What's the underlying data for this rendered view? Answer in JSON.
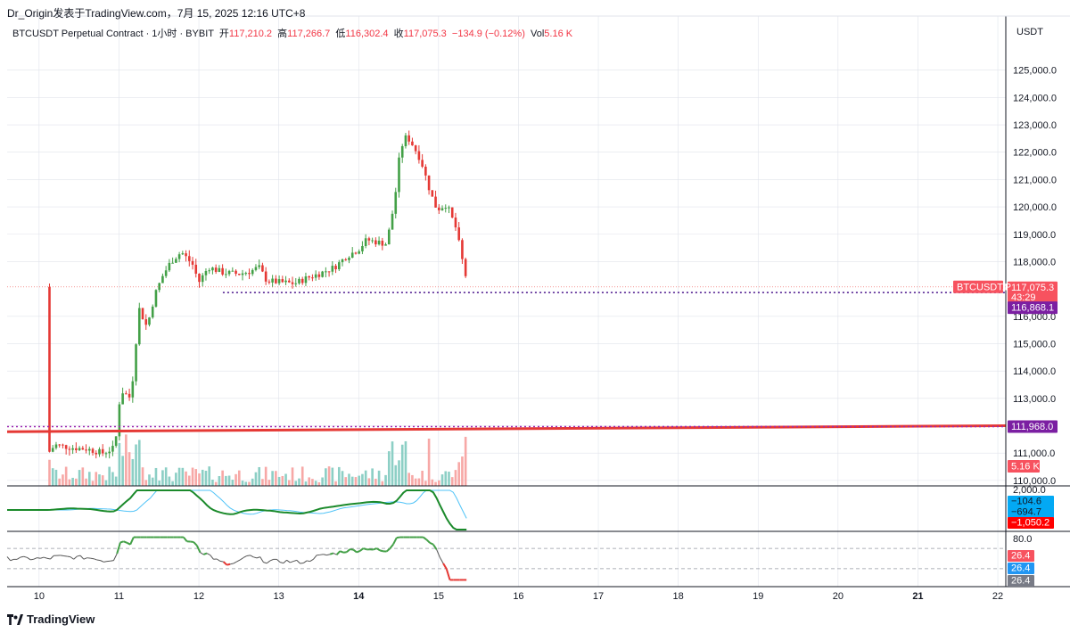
{
  "header": {
    "attribution": "Dr_Origin发表于TradingView.com，7月 15, 2025 12:16 UTC+8"
  },
  "legend": {
    "symbol": "BTCUSDT Perpetual Contract · 1小时 · BYBIT",
    "open_label": "开",
    "open": "117,210.2",
    "high_label": "高",
    "high": "117,266.7",
    "low_label": "低",
    "low": "116,302.4",
    "close_label": "收",
    "close": "117,075.3",
    "change": "−134.9 (−0.12%)",
    "vol_label": "Vol",
    "vol": "5.16 K"
  },
  "footer": {
    "brand": "TradingView",
    "logo": "tradingview-logo-icon"
  },
  "colors": {
    "up": "#26a69a",
    "down": "#ef5350",
    "candle_up": "#43a047",
    "candle_down": "#e53935",
    "resistance": "#e53935",
    "dotted_level": "#9c27b0",
    "grid": "#e0e3eb",
    "macd_fast": "#1b8a2b",
    "macd_slow": "#4fc3f7",
    "rsi_up": "#43a047",
    "rsi_down": "#e53935"
  },
  "chart_data": {
    "type": "candlestick",
    "currency": "USDT",
    "price_axis": {
      "range": [
        109800,
        126000
      ],
      "ticks": [
        "125,000.0",
        "124,000.0",
        "123,000.0",
        "122,000.0",
        "121,000.0",
        "120,000.0",
        "119,000.0",
        "118,000.0",
        "116,000.0",
        "115,000.0",
        "114,000.0",
        "113,000.0",
        "112,000.0",
        "111,000.0",
        "110,000.0"
      ]
    },
    "time_axis": {
      "range": [
        9.6,
        22.1
      ],
      "ticks": [
        {
          "v": 10,
          "label": "10",
          "bold": false
        },
        {
          "v": 11,
          "label": "11",
          "bold": false
        },
        {
          "v": 12,
          "label": "12",
          "bold": false
        },
        {
          "v": 13,
          "label": "13",
          "bold": false
        },
        {
          "v": 14,
          "label": "14",
          "bold": true
        },
        {
          "v": 15,
          "label": "15",
          "bold": false
        },
        {
          "v": 16,
          "label": "16",
          "bold": false
        },
        {
          "v": 17,
          "label": "17",
          "bold": false
        },
        {
          "v": 18,
          "label": "18",
          "bold": false
        },
        {
          "v": 19,
          "label": "19",
          "bold": false
        },
        {
          "v": 20,
          "label": "20",
          "bold": false
        },
        {
          "v": 21,
          "label": "21",
          "bold": true
        },
        {
          "v": 22,
          "label": "22",
          "bold": false
        }
      ]
    },
    "close_path": [
      [
        10.13,
        111050
      ],
      [
        10.2,
        111300
      ],
      [
        10.4,
        111200
      ],
      [
        10.6,
        111150
      ],
      [
        10.8,
        111000
      ],
      [
        10.95,
        111200
      ],
      [
        11.02,
        113300
      ],
      [
        11.15,
        113000
      ],
      [
        11.25,
        116300
      ],
      [
        11.35,
        115600
      ],
      [
        11.45,
        116800
      ],
      [
        11.55,
        117500
      ],
      [
        11.65,
        118000
      ],
      [
        11.78,
        118350
      ],
      [
        11.92,
        117900
      ],
      [
        12.0,
        117250
      ],
      [
        12.12,
        117800
      ],
      [
        12.3,
        117600
      ],
      [
        12.5,
        117550
      ],
      [
        12.65,
        117650
      ],
      [
        12.75,
        117800
      ],
      [
        12.85,
        117300
      ],
      [
        13.0,
        117250
      ],
      [
        13.2,
        117200
      ],
      [
        13.35,
        117400
      ],
      [
        13.5,
        117550
      ],
      [
        13.7,
        117800
      ],
      [
        13.85,
        118200
      ],
      [
        14.0,
        118450
      ],
      [
        14.1,
        118800
      ],
      [
        14.25,
        118700
      ],
      [
        14.35,
        118650
      ],
      [
        14.45,
        120200
      ],
      [
        14.52,
        122100
      ],
      [
        14.6,
        122600
      ],
      [
        14.68,
        122250
      ],
      [
        14.78,
        121700
      ],
      [
        14.9,
        120500
      ],
      [
        14.98,
        119900
      ],
      [
        15.1,
        120100
      ],
      [
        15.22,
        119200
      ],
      [
        15.3,
        118000
      ],
      [
        15.37,
        117075
      ]
    ],
    "volume_axis": {
      "label": "5.16 K"
    },
    "levels": [
      {
        "name": "resistance-line",
        "from": [
          9.6,
          111780
        ],
        "to": [
          22.1,
          112000
        ]
      },
      {
        "name": "support-dotted",
        "value": 111968.0,
        "label": "111,968.0",
        "from_x": 9.6
      },
      {
        "name": "dotted-116868",
        "value": 116868.1,
        "label": "116,868.1",
        "from_x": 12.3
      }
    ],
    "last_price": {
      "value": 117075.3,
      "label": "117,075.3",
      "countdown": "43:29",
      "symbol": "BTCUSDT.P"
    },
    "macd": {
      "axis_top": "2,000.0",
      "labels": [
        {
          "label": "−104.6",
          "color": "#2196f3"
        },
        {
          "label": "−694.7",
          "color": "#2196f3"
        },
        {
          "label": "−1,050.2",
          "color": "#f23645"
        }
      ]
    },
    "rsi": {
      "axis_top": "80.0",
      "levels": [
        70,
        30
      ],
      "labels": [
        {
          "label": "26.4",
          "color": "#f23645"
        },
        {
          "label": "26.4",
          "color": "#2196f3"
        },
        {
          "label": "26.4",
          "color": "#787b86"
        }
      ]
    }
  }
}
